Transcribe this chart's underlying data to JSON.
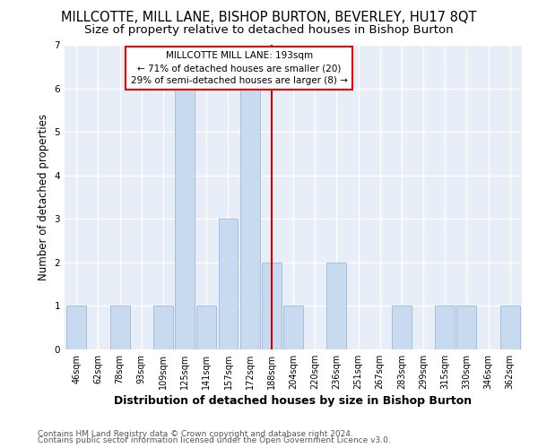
{
  "title": "MILLCOTTE, MILL LANE, BISHOP BURTON, BEVERLEY, HU17 8QT",
  "subtitle": "Size of property relative to detached houses in Bishop Burton",
  "xlabel": "Distribution of detached houses by size in Bishop Burton",
  "ylabel": "Number of detached properties",
  "footer1": "Contains HM Land Registry data © Crown copyright and database right 2024.",
  "footer2": "Contains public sector information licensed under the Open Government Licence v3.0.",
  "annotation_line1": "MILLCOTTE MILL LANE: 193sqm",
  "annotation_line2": "← 71% of detached houses are smaller (20)",
  "annotation_line3": "29% of semi-detached houses are larger (8) →",
  "bar_color": "#c8daf0",
  "bar_edge_color": "#a0b8d8",
  "reference_line_color": "#cc0000",
  "categories": [
    "46sqm",
    "62sqm",
    "78sqm",
    "93sqm",
    "109sqm",
    "125sqm",
    "141sqm",
    "157sqm",
    "172sqm",
    "188sqm",
    "204sqm",
    "220sqm",
    "236sqm",
    "251sqm",
    "267sqm",
    "283sqm",
    "299sqm",
    "315sqm",
    "330sqm",
    "346sqm",
    "362sqm"
  ],
  "values": [
    1,
    0,
    1,
    0,
    1,
    6,
    1,
    3,
    6,
    2,
    1,
    0,
    2,
    0,
    0,
    1,
    0,
    1,
    1,
    0,
    1
  ],
  "ref_category": "188sqm",
  "ylim": [
    0,
    7
  ],
  "yticks": [
    0,
    1,
    2,
    3,
    4,
    5,
    6,
    7
  ],
  "bg_color": "#ffffff",
  "plot_bg_color": "#e8eef8",
  "grid_color": "#ffffff",
  "title_fontsize": 10.5,
  "subtitle_fontsize": 9.5,
  "xlabel_fontsize": 9,
  "ylabel_fontsize": 8.5,
  "tick_fontsize": 7,
  "annotation_fontsize": 7.5,
  "footer_fontsize": 6.5
}
